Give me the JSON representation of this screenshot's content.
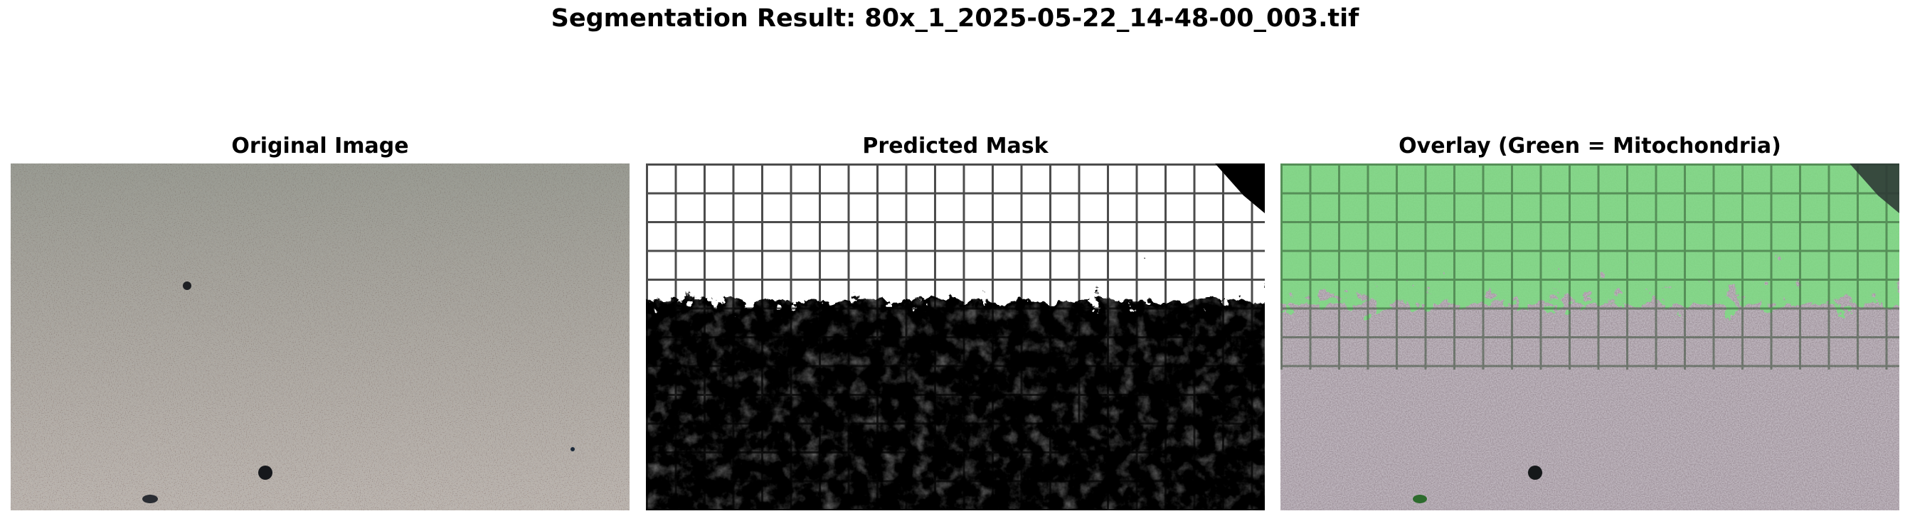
{
  "figure": {
    "title": "Segmentation Result: 80x_1_2025-05-22_14-48-00_003.tif"
  },
  "panels": [
    {
      "title": "Original Image",
      "content": "original-micrograph"
    },
    {
      "title": "Predicted Mask",
      "content": "binary-mask"
    },
    {
      "title": "Overlay (Green = Mitochondria)",
      "content": "overlay"
    }
  ],
  "colors": {
    "mask_foreground": "#ffffff",
    "mask_background": "#000000",
    "overlay_highlight": "#3fbf3f",
    "original_base": "#8a8378"
  }
}
